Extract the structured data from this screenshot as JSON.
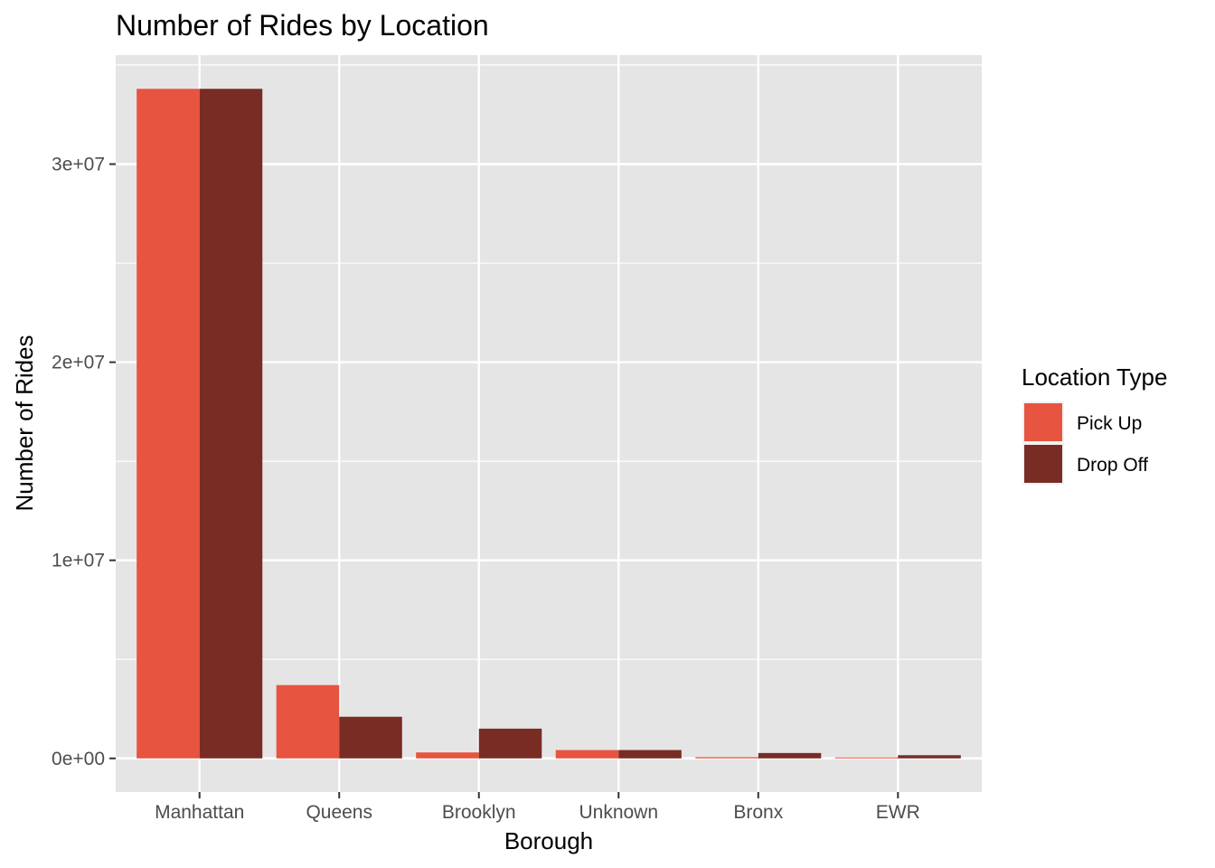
{
  "chart_data": {
    "type": "bar",
    "title": "Number of Rides by Location",
    "xlabel": "Borough",
    "ylabel": "Number of Rides",
    "categories": [
      "Manhattan",
      "Queens",
      "Brooklyn",
      "Unknown",
      "Bronx",
      "EWR"
    ],
    "series": [
      {
        "name": "Pick Up",
        "color": "#e75440",
        "values": [
          33800000,
          3700000,
          300000,
          420000,
          60000,
          8000
        ]
      },
      {
        "name": "Drop Off",
        "color": "#782c24",
        "values": [
          33800000,
          2100000,
          1500000,
          420000,
          270000,
          160000
        ]
      }
    ],
    "ylim": [
      -1700000,
      35500000
    ],
    "y_ticks": [
      0,
      10000000,
      20000000,
      30000000
    ],
    "y_tick_labels": [
      "0e+00",
      "1e+07",
      "2e+07",
      "3e+07"
    ],
    "legend": {
      "title": "Location Type",
      "position": "right"
    },
    "grid": true,
    "panel_background": "#e5e5e5",
    "grid_color": "#ffffff"
  }
}
